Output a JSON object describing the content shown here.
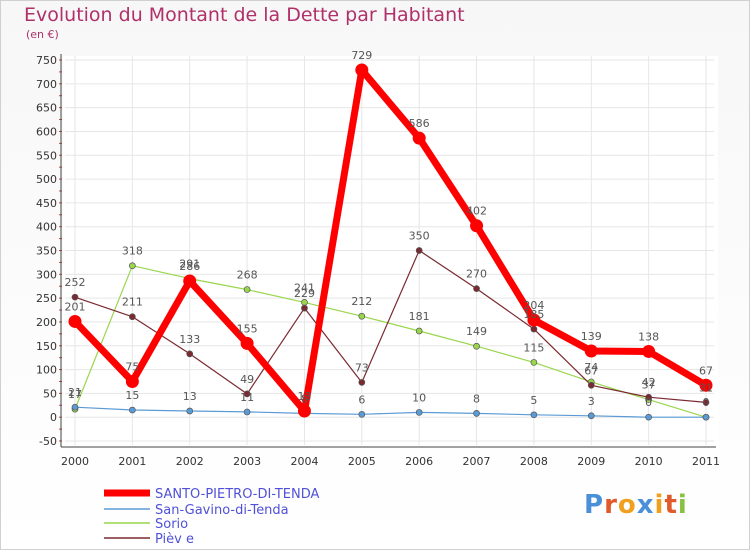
{
  "chart_data": {
    "type": "line",
    "title": "Evolution du Montant de la Dette par Habitant",
    "subtitle": "(en €)",
    "x": [
      "2000",
      "2001",
      "2002",
      "2003",
      "2004",
      "2005",
      "2006",
      "2007",
      "2008",
      "2009",
      "2010",
      "2011"
    ],
    "ylim": [
      -50,
      750
    ],
    "yticks": [
      -50,
      0,
      50,
      100,
      150,
      200,
      250,
      300,
      350,
      400,
      450,
      500,
      550,
      600,
      650,
      700,
      750
    ],
    "series": [
      {
        "name": "Sorio",
        "color": "#99d64c",
        "values": [
          17,
          318,
          291,
          268,
          241,
          212,
          181,
          149,
          115,
          74,
          37,
          0
        ],
        "labels": [
          "17",
          "318",
          "291",
          "268",
          "241",
          "212",
          "181",
          "149",
          "115",
          "74",
          "37",
          "0"
        ]
      },
      {
        "name": "Pieve",
        "color": "#7a2a30",
        "values": [
          252,
          211,
          133,
          49,
          229,
          73,
          350,
          270,
          185,
          67,
          42,
          31
        ],
        "labels": [
          "252",
          "211",
          "133",
          "49",
          "229",
          "73",
          "350",
          "270",
          "185",
          "67",
          "42",
          "31"
        ]
      },
      {
        "name": "San-Gavino-di-Tenda",
        "color": "#5b9bd5",
        "values": [
          21,
          15,
          13,
          11,
          8,
          6,
          10,
          8,
          5,
          3,
          0,
          0
        ],
        "labels": [
          "21",
          "15",
          "13",
          "11",
          "8",
          "6",
          "10",
          "8",
          "5",
          "3",
          "0",
          ""
        ]
      },
      {
        "name": "SANTO-PIETRO-DI-TENDA",
        "color": "#ff0000",
        "values": [
          201,
          75,
          286,
          155,
          13,
          729,
          586,
          402,
          204,
          139,
          138,
          67
        ],
        "labels": [
          "201",
          "75",
          "286",
          "155",
          "13",
          "729",
          "586",
          "402",
          "204",
          "139",
          "138",
          "67"
        ]
      }
    ],
    "legend": [
      "SANTO-PIETRO-DI-TENDA",
      "San-Gavino-di-Tenda",
      "Sorio",
      "Pieve"
    ],
    "legend_display": [
      "SANTO-PIETRO-DI-TENDA",
      "San-Gavino-di-Tenda",
      "Sorio",
      "Pièv e"
    ]
  },
  "logo": {
    "letters": [
      "P",
      "r",
      "o",
      "x",
      "i",
      "t",
      "i"
    ]
  }
}
